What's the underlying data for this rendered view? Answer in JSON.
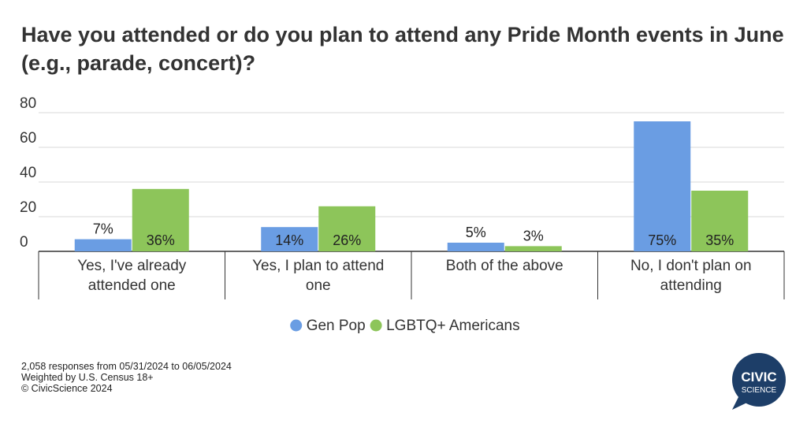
{
  "title": "Have you attended or do you plan to attend any Pride Month events in June (e.g., parade, concert)?",
  "chart_data": {
    "type": "bar",
    "categories": [
      "Yes, I've already attended one",
      "Yes, I plan to attend one",
      "Both of the above",
      "No, I don't plan on attending"
    ],
    "series": [
      {
        "name": "Gen Pop",
        "values": [
          7,
          14,
          5,
          75
        ],
        "labels": [
          "7%",
          "14%",
          "5%",
          "75%"
        ],
        "color": "#6a9de3"
      },
      {
        "name": "LGBTQ+ Americans",
        "values": [
          36,
          26,
          3,
          35
        ],
        "labels": [
          "36%",
          "26%",
          "3%",
          "35%"
        ],
        "color": "#8dc55a"
      }
    ],
    "yticks": [
      "0",
      "20",
      "40",
      "60",
      "80"
    ],
    "ylim": [
      0,
      80
    ],
    "grid": true,
    "legend_position": "bottom-center"
  },
  "footer": {
    "line1": "2,058 responses from 05/31/2024 to 06/05/2024",
    "line2": "Weighted by U.S. Census 18+",
    "line3": "© CivicScience 2024"
  },
  "logo": {
    "line1": "CIVIC",
    "line2": "SCIENCE",
    "color": "#1d3e68"
  }
}
